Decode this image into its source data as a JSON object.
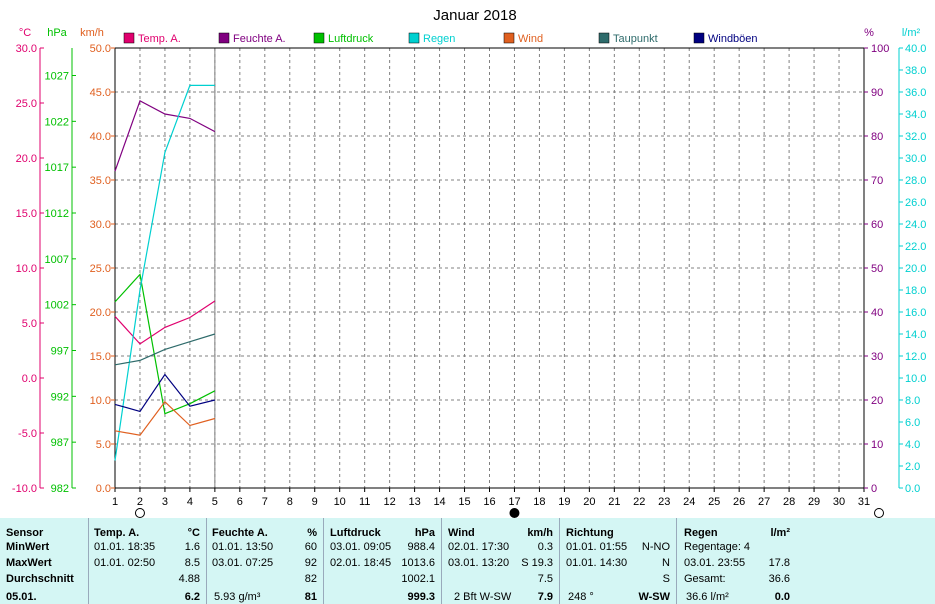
{
  "chart_data": {
    "type": "line",
    "title": "Januar 2018",
    "x": [
      1,
      2,
      3,
      4,
      5
    ],
    "x_ticks": [
      "1",
      "2",
      "3",
      "4",
      "5",
      "6",
      "7",
      "8",
      "9",
      "10",
      "11",
      "12",
      "13",
      "14",
      "15",
      "16",
      "17",
      "18",
      "19",
      "20",
      "21",
      "22",
      "23",
      "24",
      "25",
      "26",
      "27",
      "28",
      "29",
      "30",
      "31"
    ],
    "x_range": [
      1,
      31
    ],
    "axes": {
      "temp": {
        "unit": "°C",
        "ticks": [
          "30.0",
          "25.0",
          "20.0",
          "15.0",
          "10.0",
          "5.0",
          "0.0",
          "-5.0",
          "-10.0"
        ],
        "range": [
          -10,
          30
        ],
        "color": "#e0006e"
      },
      "pressure": {
        "unit": "hPa",
        "ticks": [
          "1027",
          "1022",
          "1017",
          "1012",
          "1007",
          "1002",
          "997",
          "992",
          "987",
          "982"
        ],
        "range": [
          982,
          1030
        ],
        "color": "#00c000"
      },
      "wind": {
        "unit": "km/h",
        "ticks": [
          "50.0",
          "45.0",
          "40.0",
          "35.0",
          "30.0",
          "25.0",
          "20.0",
          "15.0",
          "10.0",
          "5.0",
          "0.0"
        ],
        "range": [
          0,
          50
        ],
        "color": "#e06020"
      },
      "humidity": {
        "unit": "%",
        "ticks": [
          "100",
          "90",
          "80",
          "70",
          "60",
          "50",
          "40",
          "30",
          "20",
          "10",
          "0"
        ],
        "range": [
          0,
          100
        ],
        "color": "#800080"
      },
      "rain": {
        "unit": "l/m²",
        "ticks": [
          "40.0",
          "38.0",
          "36.0",
          "34.0",
          "32.0",
          "30.0",
          "28.0",
          "26.0",
          "24.0",
          "22.0",
          "20.0",
          "18.0",
          "16.0",
          "14.0",
          "12.0",
          "10.0",
          "8.0",
          "6.0",
          "4.0",
          "2.0",
          "0.0"
        ],
        "range": [
          0,
          40
        ],
        "color": "#00d0d0"
      }
    },
    "series": [
      {
        "name": "Temp. A.",
        "axis": "temp",
        "color": "#e0006e",
        "values": [
          5.6,
          3.1,
          4.6,
          5.5,
          7.0
        ]
      },
      {
        "name": "Feuchte A.",
        "axis": "humidity",
        "color": "#800080",
        "values": [
          72,
          88,
          85,
          84,
          81
        ]
      },
      {
        "name": "Luftdruck",
        "axis": "pressure",
        "color": "#00c000",
        "values": [
          1002.3,
          1005.3,
          990.1,
          991.2,
          992.6
        ]
      },
      {
        "name": "Regen",
        "axis": "rain",
        "color": "#00d0d0",
        "values": [
          2.5,
          18.0,
          30.5,
          36.6,
          36.6
        ]
      },
      {
        "name": "Wind",
        "axis": "wind",
        "color": "#e06020",
        "values": [
          6.5,
          6.0,
          9.8,
          7.1,
          7.9
        ]
      },
      {
        "name": "Taupunkt",
        "axis": "temp",
        "color": "#2e6b6b",
        "values": [
          1.2,
          1.6,
          2.6,
          3.3,
          4.0
        ]
      },
      {
        "name": "Windböen",
        "axis": "wind",
        "color": "#000080",
        "values": [
          9.5,
          8.7,
          12.9,
          9.3,
          10.0
        ]
      }
    ],
    "grid": true,
    "legend": "top",
    "moon_new": "2",
    "moon_full": "17"
  },
  "colors": {
    "temp": "#e0006e",
    "humidity": "#800080",
    "pressure": "#00c000",
    "rain": "#00d0d0",
    "wind": "#e06020",
    "dew": "#2e6b6b",
    "gust": "#000080",
    "panel": "#d4f6f4"
  },
  "table": {
    "sensor": {
      "header": "Sensor",
      "min": "MinWert",
      "max": "MaxWert",
      "avg": "Durchschnitt",
      "date": "05.01."
    },
    "temp": {
      "header": "Temp. A.",
      "unit": "°C",
      "min_time": "01.01.  18:35",
      "min_val": "1.6",
      "max_time": "01.01.  02:50",
      "max_val": "8.5",
      "avg": "4.88",
      "current": "6.2"
    },
    "humidity": {
      "header": "Feuchte A.",
      "unit": "%",
      "min_time": "01.01.  13:50",
      "min_val": "60",
      "max_time": "03.01.  07:25",
      "max_val": "92",
      "avg": "82",
      "extra": "5.93 g/m³",
      "current": "81"
    },
    "pressure": {
      "header": "Luftdruck",
      "unit": "hPa",
      "min_time": "03.01.  09:05",
      "min_val": "988.4",
      "max_time": "02.01.  18:45",
      "max_val": "1013.6",
      "avg": "1002.1",
      "current": "999.3"
    },
    "wind": {
      "header": "Wind",
      "unit": "km/h",
      "min_time": "02.01.  17:30",
      "min_val": "0.3",
      "max_time": "03.01.  13:20",
      "max_val": "S 19.3",
      "avg": "7.5",
      "extra": "2 Bft W-SW",
      "current": "7.9"
    },
    "direction": {
      "header": "Richtung",
      "min_time": "01.01.  01:55",
      "min_val": "N-NO",
      "max_time": "01.01.  14:30",
      "max_val": "N",
      "avg": "S",
      "extra": "248 °",
      "current": "W-SW"
    },
    "rain": {
      "header": "Regen",
      "unit": "l/m²",
      "row1": "Regentage: 4",
      "row2_time": "03.01.  23:55",
      "row2_val": "17.8",
      "row3": "Gesamt:",
      "row3_val": "36.6",
      "extra": "36.6 l/m²",
      "current": "0.0"
    }
  }
}
